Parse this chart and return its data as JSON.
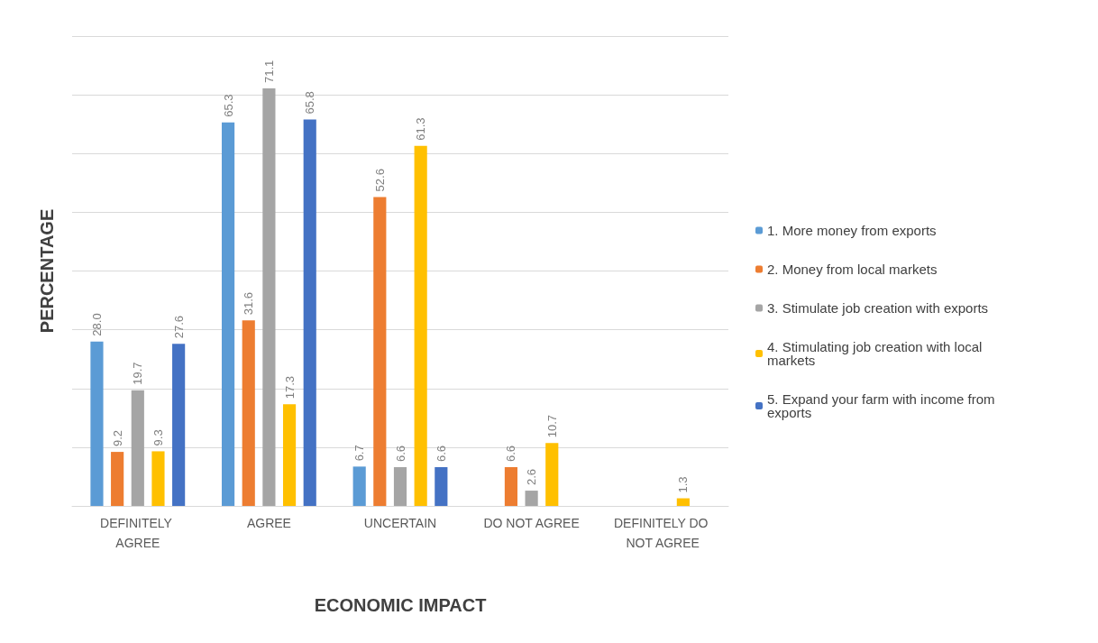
{
  "chart_data": {
    "type": "bar",
    "xlabel": "ECONOMIC IMPACT",
    "ylabel": "PERCENTAGE",
    "categories": [
      "DEFINITELY AGREE",
      "AGREE",
      "UNCERTAIN",
      "DO NOT AGREE",
      "DEFINITELY DO NOT AGREE"
    ],
    "series": [
      {
        "name": "1. More money from exports",
        "color": "#5b9bd5",
        "values": [
          28.0,
          65.3,
          6.7,
          null,
          null
        ],
        "value_labels": [
          "28.0",
          "65.3",
          "6.7",
          null,
          null
        ]
      },
      {
        "name": "2. Money from local markets",
        "color": "#ed7d31",
        "values": [
          9.2,
          31.6,
          52.6,
          6.6,
          null
        ],
        "value_labels": [
          "9.2",
          "31.6",
          "52.6",
          "6.6",
          null
        ]
      },
      {
        "name": "3. Stimulate job creation with exports",
        "color": "#a5a5a5",
        "values": [
          19.7,
          71.1,
          6.6,
          2.6,
          null
        ],
        "value_labels": [
          "19.7",
          "71.1",
          "6.6",
          "2.6",
          null
        ]
      },
      {
        "name": "4. Stimulating job creation with local markets",
        "color": "#ffc000",
        "values": [
          9.3,
          17.3,
          61.3,
          10.7,
          1.3
        ],
        "value_labels": [
          "9.3",
          "17.3",
          "61.3",
          "10.7",
          "1.3"
        ]
      },
      {
        "name": "5. Expand your farm with income from exports",
        "color": "#4472c4",
        "values": [
          27.6,
          65.8,
          6.6,
          null,
          null
        ],
        "value_labels": [
          "27.6",
          "65.8",
          "6.6",
          null,
          null
        ]
      }
    ],
    "ylim": [
      0,
      80
    ],
    "yticks": [
      {
        "value": 0,
        "label": null
      },
      {
        "value": 10,
        "label": null
      },
      {
        "value": 20,
        "label": null
      },
      {
        "value": 30,
        "label": null
      },
      {
        "value": 40,
        "label": null
      },
      {
        "value": 50,
        "label": null
      },
      {
        "value": 60,
        "label": null
      },
      {
        "value": 70,
        "label": null
      },
      {
        "value": 80,
        "label": null
      }
    ],
    "tick_labels": "x",
    "grid": "y",
    "legend": "right"
  }
}
